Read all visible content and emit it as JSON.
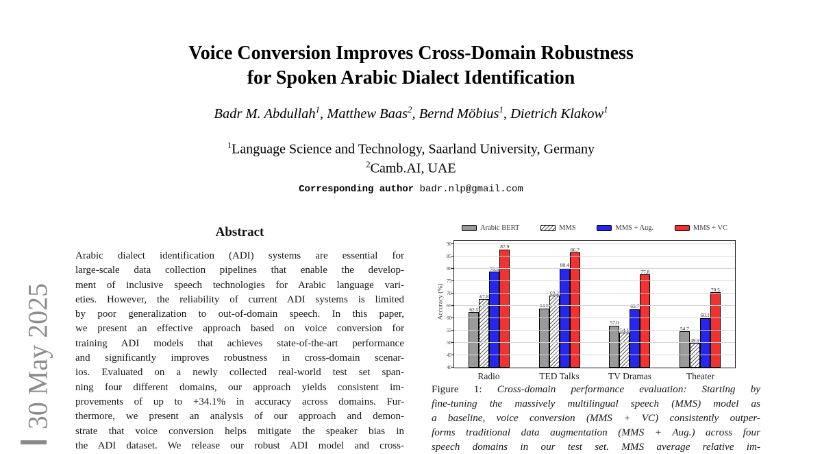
{
  "watermark": {
    "date_text": "30 May 2025",
    "color": "#8c8c8c"
  },
  "header": {
    "title_line1": "Voice Conversion Improves Cross-Domain Robustness",
    "title_line2": "for Spoken Arabic Dialect Identification",
    "authors": [
      {
        "name": "Badr M. Abdullah",
        "sup": "1"
      },
      {
        "name": "Matthew Baas",
        "sup": "2"
      },
      {
        "name": "Bernd Möbius",
        "sup": "1"
      },
      {
        "name": "Dietrich Klakow",
        "sup": "1"
      }
    ],
    "affiliations": [
      {
        "sup": "1",
        "text": "Language Science and Technology, Saarland University, Germany"
      },
      {
        "sup": "2",
        "text": "Camb.AI, UAE"
      }
    ],
    "corresponding_label": "Corresponding author",
    "corresponding_email": "badr.nlp@gmail.com"
  },
  "abstract": {
    "heading": "Abstract",
    "lines": [
      "Arabic dialect identification (ADI) systems are essential for",
      "large-scale data collection pipelines that enable the develop-",
      "ment of inclusive speech technologies for Arabic language vari-",
      "eties. However, the reliability of current ADI systems is limited",
      "by poor generalization to out-of-domain speech. In this paper,",
      "we present an effective approach based on voice conversion for",
      "training ADI models that achieves state-of-the-art performance",
      "and significantly improves robustness in cross-domain scenar-",
      "ios. Evaluated on a newly collected real-world test set span-",
      "ning four different domains, our approach yields consistent im-",
      "provements of up to +34.1% in accuracy across domains. Fur-",
      "thermore, we present an analysis of our approach and demon-",
      "strate that voice conversion helps mitigate the speaker bias in",
      "the ADI dataset. We release our robust ADI model and cross-"
    ]
  },
  "figure": {
    "caption_label": "Figure 1:",
    "caption_lines": [
      "Cross-domain performance evaluation: Starting by",
      "fine-tuning the massively multilingual speech (MMS) model as",
      "a baseline, voice conversion (MMS + VC) consistently outper-",
      "forms traditional data augmentation (MMS + Aug.) across four",
      "speech domains in our test set. MMS average relative im-"
    ]
  },
  "chart_data": {
    "type": "bar",
    "title": "",
    "xlabel": "",
    "ylabel": "Accuracy (%)",
    "ylim": [
      40,
      92
    ],
    "yticks": [
      40,
      45,
      50,
      55,
      60,
      65,
      70,
      75,
      80,
      85,
      90
    ],
    "grid": true,
    "legend_position": "top",
    "categories": [
      "Radio",
      "TED Talks",
      "TV Dramas",
      "Theater"
    ],
    "series": [
      {
        "name": "Arabic BERT",
        "style": "solid",
        "color": "#9a9a9a",
        "values": [
          62.5,
          64.0,
          57.0,
          54.7
        ]
      },
      {
        "name": "MMS",
        "style": "hatched",
        "color": "#ffffff",
        "values": [
          67.8,
          69.2,
          54.1,
          49.9
        ]
      },
      {
        "name": "MMS + Aug.",
        "style": "solid",
        "color": "#2626ee",
        "values": [
          78.8,
          80.4,
          63.7,
          60.1
        ]
      },
      {
        "name": "MMS + VC",
        "style": "solid",
        "color": "#f23131",
        "values": [
          87.9,
          86.7,
          77.8,
          70.5
        ]
      }
    ]
  }
}
